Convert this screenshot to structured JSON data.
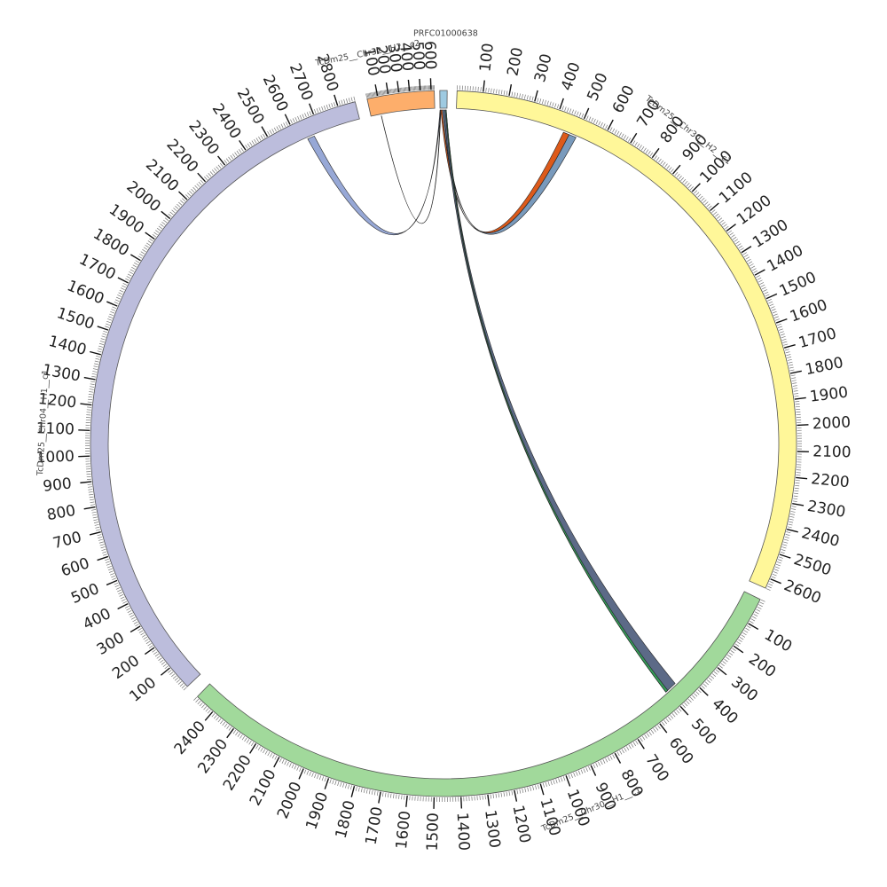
{
  "chart_data": {
    "type": "circos",
    "segments": [
      {
        "name": "PRFC01000638",
        "length": 18,
        "color": "#9ecae1",
        "tick_labels": []
      },
      {
        "name": "TcDm25__Chr30__H2__c1",
        "length": 2640,
        "color": "#fff799",
        "tick_labels": [
          "100",
          "200",
          "300",
          "400",
          "500",
          "600",
          "700",
          "800",
          "900",
          "1000",
          "1100",
          "1200",
          "1300",
          "1400",
          "1500",
          "1600",
          "1700",
          "1800",
          "1900",
          "2000",
          "2100",
          "2200",
          "2300",
          "2400",
          "2500",
          "2600"
        ]
      },
      {
        "name": "TcDm25__Chr30__H1__c1",
        "length": 2480,
        "color": "#a1d99b",
        "tick_labels": [
          "100",
          "200",
          "300",
          "400",
          "500",
          "600",
          "700",
          "800",
          "900",
          "1000",
          "1100",
          "1200",
          "1300",
          "1400",
          "1500",
          "1600",
          "1700",
          "1800",
          "1900",
          "2000",
          "2100",
          "2200",
          "2300",
          "2400"
        ]
      },
      {
        "name": "TcDm25__Chr04__H1__c1",
        "length": 2870,
        "color": "#bcbddc",
        "tick_labels": [
          "100",
          "200",
          "300",
          "400",
          "500",
          "600",
          "700",
          "800",
          "900",
          "1000",
          "1100",
          "1200",
          "1300",
          "1400",
          "1500",
          "1600",
          "1700",
          "1800",
          "1900",
          "2000",
          "2100",
          "2200",
          "2300",
          "2400",
          "2500",
          "2600",
          "2700",
          "2800"
        ]
      },
      {
        "name": "TcDm25__Chr32__H2__c2",
        "length": 630,
        "color": "#fdae6b",
        "tick_labels": [
          "100",
          "200",
          "300",
          "400",
          "500",
          "600"
        ]
      }
    ],
    "links": [
      {
        "from": "PRFC01000638",
        "from_range": [
          2,
          6
        ],
        "to": "TcDm25__Chr30__H2__c1",
        "to_range": [
          445,
          470
        ],
        "color": "#d94801"
      },
      {
        "from": "PRFC01000638",
        "from_range": [
          6,
          10
        ],
        "to": "TcDm25__Chr30__H2__c1",
        "to_range": [
          470,
          500
        ],
        "color": "#6a8fb5"
      },
      {
        "from": "PRFC01000638",
        "from_range": [
          10,
          16
        ],
        "to": "TcDm25__Chr30__H1__c1",
        "to_range": [
          455,
          505
        ],
        "color": "#4a5a7a"
      },
      {
        "from": "PRFC01000638",
        "from_range": [
          14,
          16
        ],
        "to": "TcDm25__Chr30__H1__c1",
        "to_range": [
          495,
          505
        ],
        "color": "#31a354"
      },
      {
        "from": "PRFC01000638",
        "from_range": [
          0,
          2
        ],
        "to": "TcDm25__Chr04__H1__c1",
        "to_range": [
          2640,
          2670
        ],
        "color": "#8c9fd1"
      },
      {
        "from": "PRFC01000638",
        "from_range": [
          1,
          2
        ],
        "to": "TcDm25__Chr32__H2__c2",
        "to_range": [
          100,
          102
        ],
        "color": "#333333"
      }
    ]
  }
}
